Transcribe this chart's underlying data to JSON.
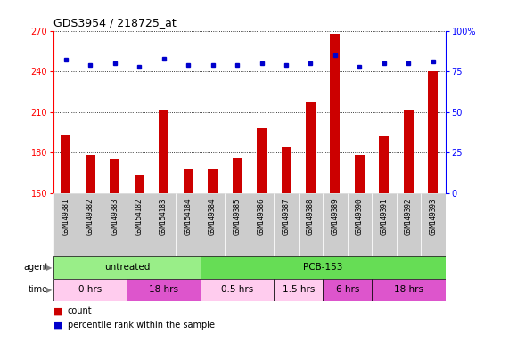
{
  "title": "GDS3954 / 218725_at",
  "samples": [
    "GSM149381",
    "GSM149382",
    "GSM149383",
    "GSM154182",
    "GSM154183",
    "GSM154184",
    "GSM149384",
    "GSM149385",
    "GSM149386",
    "GSM149387",
    "GSM149388",
    "GSM149389",
    "GSM149390",
    "GSM149391",
    "GSM149392",
    "GSM149393"
  ],
  "counts": [
    193,
    178,
    175,
    163,
    211,
    168,
    168,
    176,
    198,
    184,
    218,
    268,
    178,
    192,
    212,
    240
  ],
  "percentile_ranks": [
    82,
    79,
    80,
    78,
    83,
    79,
    79,
    79,
    80,
    79,
    80,
    85,
    78,
    80,
    80,
    81
  ],
  "bar_color": "#cc0000",
  "dot_color": "#0000cc",
  "ylim_left": [
    150,
    270
  ],
  "ylim_right": [
    0,
    100
  ],
  "yticks_left": [
    150,
    180,
    210,
    240,
    270
  ],
  "yticks_right": [
    0,
    25,
    50,
    75,
    100
  ],
  "agent_groups": [
    {
      "label": "untreated",
      "start": 0,
      "end": 5,
      "color": "#99ee88"
    },
    {
      "label": "PCB-153",
      "start": 6,
      "end": 15,
      "color": "#66dd55"
    }
  ],
  "time_groups": [
    {
      "label": "0 hrs",
      "start": 0,
      "end": 2,
      "color": "#ffccee"
    },
    {
      "label": "18 hrs",
      "start": 3,
      "end": 5,
      "color": "#dd55cc"
    },
    {
      "label": "0.5 hrs",
      "start": 6,
      "end": 8,
      "color": "#ffccee"
    },
    {
      "label": "1.5 hrs",
      "start": 9,
      "end": 10,
      "color": "#ffccee"
    },
    {
      "label": "6 hrs",
      "start": 11,
      "end": 12,
      "color": "#dd55cc"
    },
    {
      "label": "18 hrs",
      "start": 13,
      "end": 15,
      "color": "#dd55cc"
    }
  ],
  "bg_color": "#ffffff",
  "label_bg": "#cccccc",
  "agent_light": "#aaeebb",
  "agent_dark": "#77dd66",
  "time_light": "#ffddee",
  "time_dark": "#dd66cc"
}
